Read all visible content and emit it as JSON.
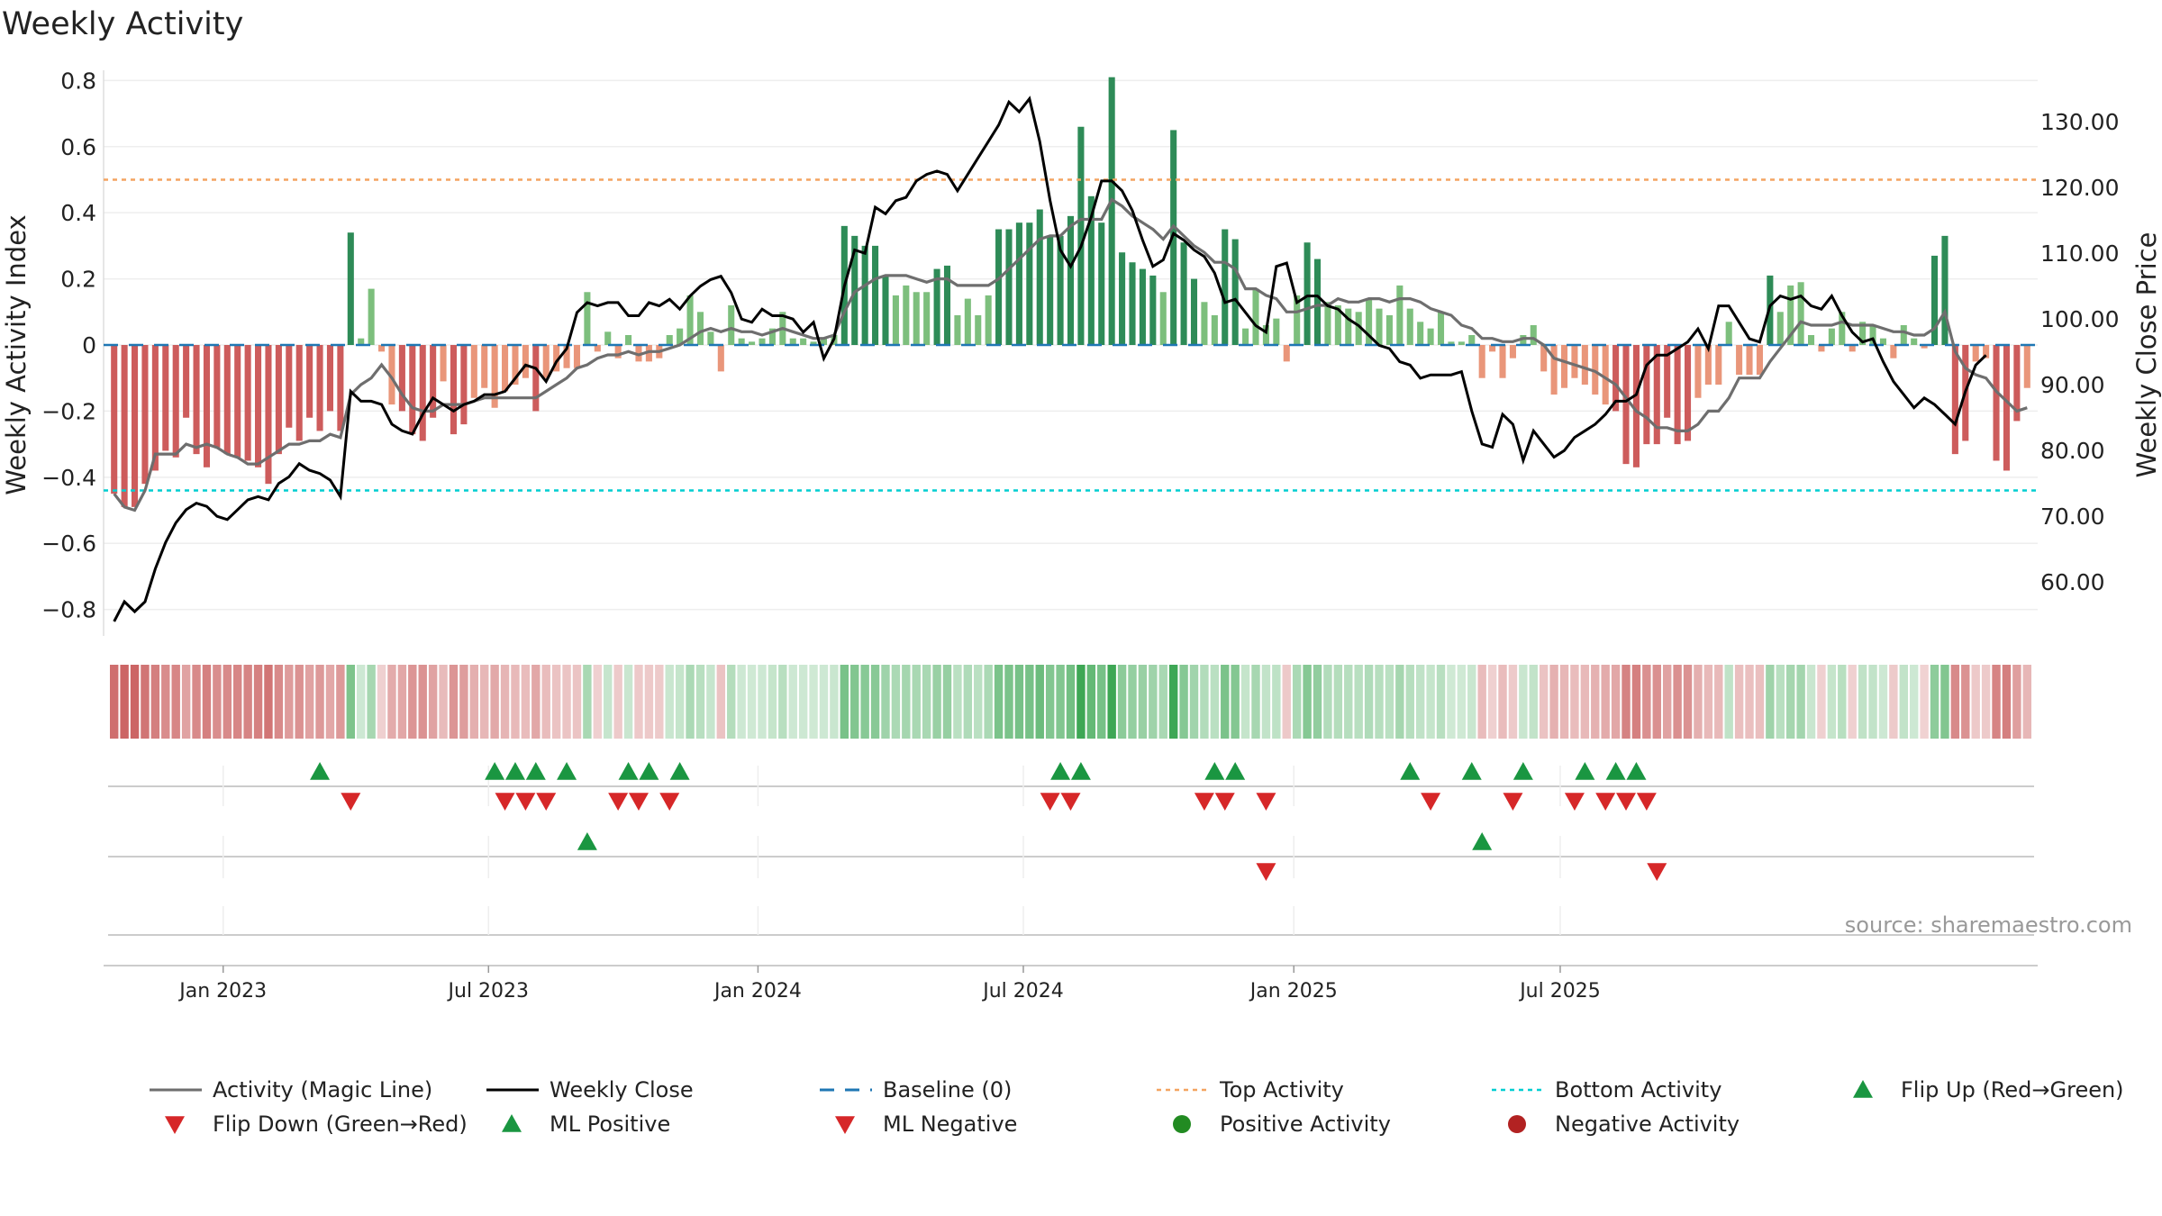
{
  "chart_data": {
    "type": "bar",
    "title": "Weekly Activity",
    "ylabel_left": "Weekly Activity Index",
    "ylabel_right": "Weekly Close Price",
    "source": "source: sharemaestro.com",
    "left_axis": {
      "ylim": [
        -0.88,
        0.88
      ],
      "ticks": [
        -0.8,
        -0.6,
        -0.4,
        -0.2,
        0,
        0.2,
        0.4,
        0.6,
        0.8
      ],
      "tick_labels": [
        "−0.8",
        "−0.6",
        "−0.4",
        "−0.2",
        "0",
        "0.2",
        "0.4",
        "0.6",
        "0.8"
      ]
    },
    "right_axis": {
      "ylim": [
        51.8,
        140.3
      ],
      "ticks": [
        60,
        70,
        80,
        90,
        100,
        110,
        120,
        130
      ],
      "tick_labels": [
        "60.00",
        "70.00",
        "80.00",
        "90.00",
        "100.00",
        "110.00",
        "120.00",
        "130.00"
      ]
    },
    "x_axis": {
      "start": "2022-10-17",
      "end": "2025-09-08",
      "tick_labels": [
        "Jan 2023",
        "Jul 2023",
        "Jan 2024",
        "Jul 2024",
        "Jan 2025",
        "Jul 2025"
      ],
      "tick_weeks": [
        10.6,
        36.4,
        62.6,
        88.4,
        114.7,
        140.6
      ]
    },
    "top_activity": 0.5,
    "bottom_activity": -0.44,
    "activity_bars": [
      -0.45,
      -0.49,
      -0.49,
      -0.42,
      -0.38,
      -0.32,
      -0.34,
      -0.22,
      -0.33,
      -0.37,
      -0.31,
      -0.33,
      -0.34,
      -0.35,
      -0.37,
      -0.42,
      -0.33,
      -0.25,
      -0.29,
      -0.22,
      -0.26,
      -0.2,
      -0.26,
      0.34,
      0.02,
      0.17,
      -0.02,
      -0.18,
      -0.2,
      -0.27,
      -0.29,
      -0.22,
      -0.11,
      -0.27,
      -0.24,
      -0.16,
      -0.13,
      -0.19,
      -0.14,
      -0.12,
      -0.1,
      -0.2,
      -0.1,
      -0.08,
      -0.07,
      -0.07,
      0.16,
      -0.02,
      0.04,
      -0.04,
      0.03,
      -0.05,
      -0.05,
      -0.04,
      0.03,
      0.05,
      0.15,
      0.1,
      0.04,
      -0.08,
      0.12,
      0.02,
      0.01,
      0.02,
      0.05,
      0.1,
      0.02,
      0.02,
      0.01,
      0.02,
      0.03,
      0.36,
      0.33,
      0.3,
      0.3,
      0.21,
      0.15,
      0.18,
      0.16,
      0.16,
      0.23,
      0.24,
      0.09,
      0.14,
      0.09,
      0.15,
      0.35,
      0.35,
      0.37,
      0.37,
      0.41,
      0.33,
      0.33,
      0.39,
      0.66,
      0.45,
      0.37,
      0.81,
      0.28,
      0.25,
      0.23,
      0.21,
      0.16,
      0.65,
      0.31,
      0.2,
      0.13,
      0.09,
      0.35,
      0.32,
      0.05,
      0.17,
      0.06,
      0.08,
      -0.05,
      0.15,
      0.31,
      0.26,
      0.13,
      0.12,
      0.11,
      0.1,
      0.14,
      0.11,
      0.09,
      0.18,
      0.11,
      0.07,
      0.05,
      0.1,
      0.01,
      0.01,
      0.03,
      -0.1,
      -0.02,
      -0.1,
      -0.04,
      0.03,
      0.06,
      -0.08,
      -0.15,
      -0.13,
      -0.1,
      -0.12,
      -0.15,
      -0.18,
      -0.2,
      -0.36,
      -0.37,
      -0.3,
      -0.3,
      -0.22,
      -0.3,
      -0.29,
      -0.16,
      -0.12,
      -0.12,
      0.07,
      -0.09,
      -0.09,
      -0.09,
      0.21,
      0.1,
      0.18,
      0.19,
      0.03,
      -0.02,
      0.05,
      0.1,
      -0.02,
      0.07,
      0.06,
      0.02,
      -0.04,
      0.06,
      0.02,
      -0.01,
      0.27,
      0.33,
      -0.33,
      -0.29,
      -0.05,
      -0.04,
      -0.35,
      -0.38,
      -0.23,
      -0.13
    ],
    "magic_line": [
      -0.45,
      -0.49,
      -0.5,
      -0.44,
      -0.33,
      -0.33,
      -0.33,
      -0.3,
      -0.31,
      -0.3,
      -0.31,
      -0.33,
      -0.34,
      -0.36,
      -0.36,
      -0.34,
      -0.32,
      -0.3,
      -0.3,
      -0.29,
      -0.29,
      -0.27,
      -0.28,
      -0.15,
      -0.12,
      -0.1,
      -0.06,
      -0.1,
      -0.15,
      -0.19,
      -0.2,
      -0.2,
      -0.18,
      -0.18,
      -0.18,
      -0.17,
      -0.16,
      -0.16,
      -0.16,
      -0.16,
      -0.16,
      -0.16,
      -0.14,
      -0.12,
      -0.1,
      -0.07,
      -0.06,
      -0.04,
      -0.03,
      -0.03,
      -0.02,
      -0.03,
      -0.02,
      -0.02,
      -0.01,
      0.0,
      0.02,
      0.04,
      0.05,
      0.04,
      0.05,
      0.04,
      0.04,
      0.03,
      0.04,
      0.05,
      0.04,
      0.03,
      0.02,
      0.02,
      0.03,
      0.1,
      0.16,
      0.18,
      0.2,
      0.21,
      0.21,
      0.21,
      0.2,
      0.19,
      0.2,
      0.2,
      0.18,
      0.18,
      0.18,
      0.18,
      0.2,
      0.23,
      0.26,
      0.29,
      0.32,
      0.33,
      0.33,
      0.36,
      0.38,
      0.38,
      0.38,
      0.44,
      0.42,
      0.39,
      0.37,
      0.35,
      0.32,
      0.36,
      0.33,
      0.3,
      0.28,
      0.25,
      0.25,
      0.23,
      0.17,
      0.17,
      0.15,
      0.14,
      0.1,
      0.1,
      0.11,
      0.12,
      0.12,
      0.14,
      0.13,
      0.13,
      0.14,
      0.14,
      0.13,
      0.14,
      0.14,
      0.13,
      0.11,
      0.1,
      0.09,
      0.06,
      0.05,
      0.02,
      0.02,
      0.01,
      0.01,
      0.02,
      0.02,
      0.0,
      -0.04,
      -0.05,
      -0.06,
      -0.07,
      -0.08,
      -0.1,
      -0.12,
      -0.16,
      -0.2,
      -0.22,
      -0.25,
      -0.25,
      -0.26,
      -0.26,
      -0.24,
      -0.2,
      -0.2,
      -0.16,
      -0.1,
      -0.1,
      -0.1,
      -0.05,
      -0.01,
      0.03,
      0.07,
      0.06,
      0.06,
      0.06,
      0.07,
      0.06,
      0.06,
      0.06,
      0.05,
      0.04,
      0.04,
      0.03,
      0.03,
      0.05,
      0.1,
      -0.02,
      -0.07,
      -0.09,
      -0.1,
      -0.14,
      -0.17,
      -0.2,
      -0.19
    ],
    "weekly_close": [
      54.0,
      57.0,
      55.5,
      57.0,
      62.0,
      66.0,
      69.0,
      71.0,
      72.0,
      71.5,
      70.0,
      69.5,
      71.0,
      72.5,
      73.0,
      72.5,
      75.0,
      76.0,
      78.0,
      77.0,
      76.5,
      75.5,
      73.0,
      89.0,
      87.5,
      87.5,
      87.0,
      84.0,
      83.0,
      82.5,
      85.5,
      88.0,
      87.0,
      86.0,
      87.0,
      87.5,
      88.5,
      88.5,
      89.0,
      91.0,
      93.0,
      92.5,
      90.5,
      93.5,
      95.5,
      101.0,
      102.5,
      102.0,
      102.5,
      102.5,
      100.5,
      100.5,
      102.5,
      102.0,
      103.0,
      101.5,
      103.5,
      105.0,
      106.0,
      106.5,
      104.0,
      100.0,
      99.5,
      101.5,
      100.5,
      100.5,
      100.0,
      98.0,
      99.5,
      94.0,
      97.0,
      105.0,
      110.5,
      110.0,
      117.0,
      116.0,
      118.0,
      118.5,
      121.0,
      122.0,
      122.5,
      122.0,
      119.5,
      122.0,
      124.5,
      127.0,
      129.5,
      133.0,
      131.5,
      133.5,
      127.0,
      118.0,
      110.5,
      108.0,
      111.0,
      115.5,
      121.0,
      121.0,
      119.5,
      116.5,
      112.0,
      108.0,
      109.0,
      113.0,
      112.0,
      110.5,
      109.5,
      107.0,
      102.5,
      103.0,
      101.0,
      99.0,
      98.0,
      108.0,
      108.5,
      102.5,
      103.5,
      103.5,
      102.0,
      101.5,
      100.0,
      99.0,
      97.5,
      96.0,
      95.5,
      93.5,
      93.0,
      91.0,
      91.5,
      91.5,
      91.5,
      92.0,
      86.0,
      81.0,
      80.5,
      85.5,
      84.0,
      78.5,
      83.0,
      81.0,
      79.0,
      80.0,
      82.0,
      83.0,
      84.0,
      85.5,
      87.5,
      87.5,
      88.5,
      93.0,
      94.5,
      94.5,
      95.5,
      96.5,
      98.5,
      95.5,
      102.0,
      102.0,
      99.5,
      97.0,
      96.5,
      102.0,
      103.5,
      103.0,
      103.5,
      102.0,
      101.5,
      103.5,
      100.5,
      98.0,
      96.5,
      97.0,
      93.5,
      90.5,
      88.5,
      86.5,
      88.0,
      87.0,
      85.5,
      84.0,
      89.0,
      93.0,
      94.5
    ],
    "flip_up_weeks": [
      20,
      37,
      39,
      41,
      44,
      50,
      52,
      55,
      92,
      94,
      107,
      109,
      126,
      132,
      137,
      143,
      146,
      148
    ],
    "flip_down_weeks": [
      23,
      38,
      40,
      42,
      49,
      51,
      54,
      91,
      93,
      106,
      108,
      112,
      128,
      136,
      142,
      145,
      147,
      149
    ],
    "ml_positive_weeks": [
      46,
      133
    ],
    "ml_negative_weeks": [
      112,
      150
    ],
    "positive_activity_weeks": [],
    "negative_activity_weeks": [],
    "legend": [
      "Activity (Magic Line)",
      "Weekly Close",
      "Baseline (0)",
      "Top Activity",
      "Bottom Activity",
      "Flip Up (Red→Green)",
      "Flip Down (Green→Red)",
      "ML Positive",
      "ML Negative",
      "Positive Activity",
      "Negative Activity"
    ],
    "colors": {
      "pos_strong": "#2e8b57",
      "pos_light": "#7dbf7d",
      "neg_strong": "#cd5c5c",
      "neg_light": "#e9967a",
      "magic_line": "#6e6e6e",
      "close": "#000000",
      "baseline": "#1f77b4",
      "top": "#f4a460",
      "bottom": "#00ced1",
      "flip_up": "#1a9641",
      "flip_down": "#d62728",
      "positive_activity": "#228b22",
      "negative_activity": "#b22222"
    }
  }
}
